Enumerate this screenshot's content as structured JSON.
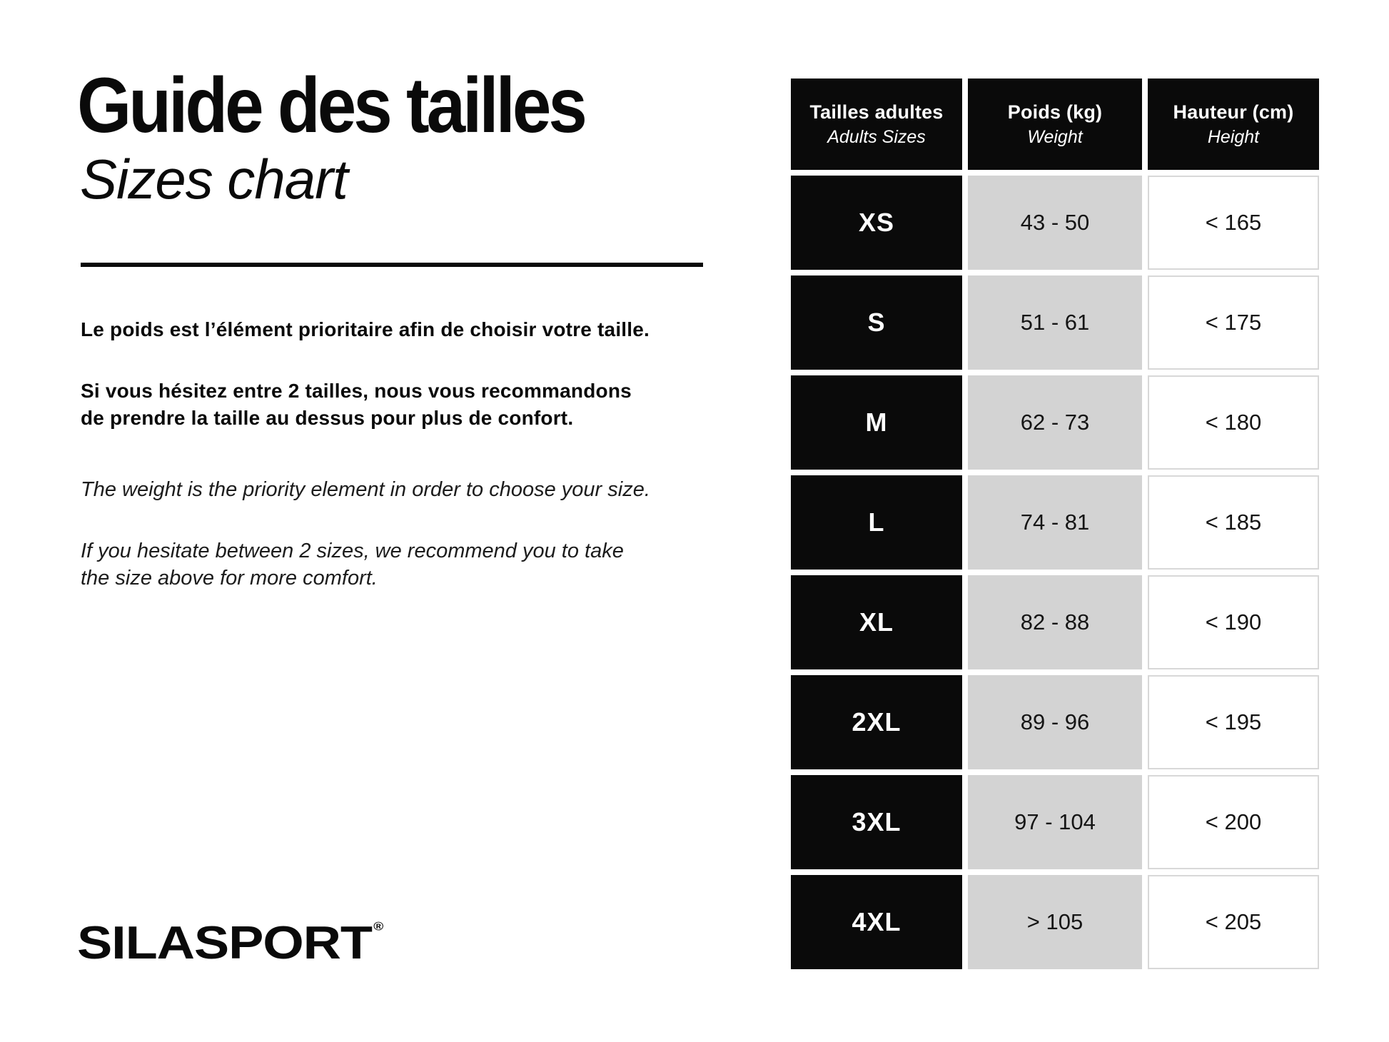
{
  "header": {
    "title_fr": "Guide des tailles",
    "title_en": "Sizes chart"
  },
  "intro": {
    "fr_para1": "Le poids est l’élément prioritaire afin de choisir votre taille.",
    "fr_para2": "Si vous hésitez entre 2 tailles, nous vous recommandons\nde prendre la taille au dessus pour plus de confort.",
    "en_para1": "The weight is the priority element in order to choose your size.",
    "en_para2": "If you hesitate between 2 sizes, we recommend you to take\nthe size above for more comfort."
  },
  "brand": {
    "logo_text": "SILASPORT",
    "registered_mark": "®"
  },
  "size_table": {
    "columns": [
      {
        "fr": "Tailles adultes",
        "en": "Adults Sizes"
      },
      {
        "fr": "Poids (kg)",
        "en": "Weight"
      },
      {
        "fr": "Hauteur (cm)",
        "en": "Height"
      }
    ],
    "rows": [
      {
        "size": "XS",
        "weight": "43 - 50",
        "height": "< 165"
      },
      {
        "size": "S",
        "weight": "51 - 61",
        "height": "< 175"
      },
      {
        "size": "M",
        "weight": "62 - 73",
        "height": "< 180"
      },
      {
        "size": "L",
        "weight": "74 - 81",
        "height": "< 185"
      },
      {
        "size": "XL",
        "weight": "82 - 88",
        "height": "< 190"
      },
      {
        "size": "2XL",
        "weight": "89 - 96",
        "height": "< 195"
      },
      {
        "size": "3XL",
        "weight": "97 - 104",
        "height": "< 200"
      },
      {
        "size": "4XL",
        "weight": "> 105",
        "height": "< 205"
      }
    ]
  },
  "colors": {
    "cell_black": "#0a0a0a",
    "cell_gray": "#d3d3d3",
    "white_cell_border": "#d8d8d8",
    "text_black": "#0a0a0a"
  }
}
